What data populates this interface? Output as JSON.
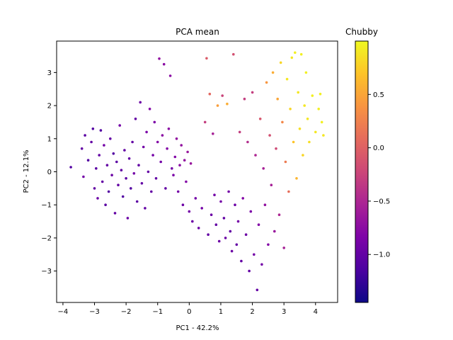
{
  "chart_data": {
    "type": "scatter",
    "title": "PCA mean",
    "xlabel": "PC1 - 42.2%",
    "ylabel": "PC2 - 12.1%",
    "xlim": [
      -4.2,
      4.7
    ],
    "ylim": [
      -3.95,
      3.95
    ],
    "xticks": [
      -4,
      -3,
      -2,
      -1,
      0,
      1,
      2,
      3,
      4
    ],
    "yticks": [
      -3,
      -2,
      -1,
      0,
      1,
      2,
      3
    ],
    "grid": false,
    "legend": "none",
    "colorbar": {
      "label": "Chubby",
      "colormap": "plasma",
      "range": [
        -1.45,
        1.0
      ],
      "ticks": [
        -1.0,
        -0.5,
        0.0,
        0.5
      ]
    },
    "series": [
      {
        "points": [
          {
            "x": -3.75,
            "y": 0.14,
            "c": -1.1
          },
          {
            "x": -3.4,
            "y": 0.7,
            "c": -1.0
          },
          {
            "x": -3.35,
            "y": -0.15,
            "c": -0.9
          },
          {
            "x": -3.3,
            "y": 1.1,
            "c": -1.05
          },
          {
            "x": -3.2,
            "y": 0.35,
            "c": -1.1
          },
          {
            "x": -3.1,
            "y": 0.9,
            "c": -1.0
          },
          {
            "x": -3.05,
            "y": 1.3,
            "c": -1.1
          },
          {
            "x": -3.0,
            "y": -0.5,
            "c": -1.0
          },
          {
            "x": -2.95,
            "y": 0.1,
            "c": -1.05
          },
          {
            "x": -2.9,
            "y": -0.8,
            "c": -0.95
          },
          {
            "x": -2.85,
            "y": 0.5,
            "c": -1.0
          },
          {
            "x": -2.8,
            "y": 1.25,
            "c": -1.1
          },
          {
            "x": -2.75,
            "y": -0.3,
            "c": -1.0
          },
          {
            "x": -2.7,
            "y": 0.8,
            "c": -0.9
          },
          {
            "x": -2.65,
            "y": -1.0,
            "c": -1.05
          },
          {
            "x": -2.6,
            "y": 0.2,
            "c": -1.0
          },
          {
            "x": -2.55,
            "y": -0.6,
            "c": -1.1
          },
          {
            "x": -2.5,
            "y": 1.0,
            "c": -1.0
          },
          {
            "x": -2.45,
            "y": -0.1,
            "c": -0.95
          },
          {
            "x": -2.4,
            "y": 0.55,
            "c": -1.1
          },
          {
            "x": -2.35,
            "y": -1.25,
            "c": -1.0
          },
          {
            "x": -2.3,
            "y": 0.3,
            "c": -1.05
          },
          {
            "x": -2.25,
            "y": -0.4,
            "c": -1.0
          },
          {
            "x": -2.2,
            "y": 1.4,
            "c": -0.9
          },
          {
            "x": -2.15,
            "y": 0.05,
            "c": -1.0
          },
          {
            "x": -2.1,
            "y": -0.75,
            "c": -1.1
          },
          {
            "x": -2.05,
            "y": 0.65,
            "c": -1.0
          },
          {
            "x": -2.0,
            "y": -0.2,
            "c": -1.05
          },
          {
            "x": -1.95,
            "y": -1.4,
            "c": -0.95
          },
          {
            "x": -1.9,
            "y": 0.4,
            "c": -1.0
          },
          {
            "x": -1.85,
            "y": -0.5,
            "c": -1.1
          },
          {
            "x": -1.8,
            "y": 0.9,
            "c": -1.0
          },
          {
            "x": -1.75,
            "y": -0.05,
            "c": -0.9
          },
          {
            "x": -1.7,
            "y": 1.6,
            "c": -1.0
          },
          {
            "x": -1.65,
            "y": -0.9,
            "c": -1.05
          },
          {
            "x": -1.6,
            "y": 0.2,
            "c": -1.0
          },
          {
            "x": -1.55,
            "y": 2.1,
            "c": -0.95
          },
          {
            "x": -1.5,
            "y": -0.35,
            "c": -1.0
          },
          {
            "x": -1.45,
            "y": 0.75,
            "c": -0.9
          },
          {
            "x": -1.4,
            "y": -1.1,
            "c": -1.0
          },
          {
            "x": -1.35,
            "y": 1.2,
            "c": -0.85
          },
          {
            "x": -1.3,
            "y": 0.0,
            "c": -1.0
          },
          {
            "x": -1.25,
            "y": 1.9,
            "c": -0.8
          },
          {
            "x": -1.2,
            "y": -0.6,
            "c": -1.0
          },
          {
            "x": -1.15,
            "y": 0.5,
            "c": -0.9
          },
          {
            "x": -1.1,
            "y": 1.5,
            "c": -0.85
          },
          {
            "x": -1.05,
            "y": -0.2,
            "c": -1.0
          },
          {
            "x": -1.0,
            "y": 0.9,
            "c": -0.8
          },
          {
            "x": -0.95,
            "y": 3.42,
            "c": -0.7
          },
          {
            "x": -0.9,
            "y": 0.3,
            "c": -0.9
          },
          {
            "x": -0.85,
            "y": 1.1,
            "c": -0.75
          },
          {
            "x": -0.8,
            "y": 3.25,
            "c": -0.75
          },
          {
            "x": -0.75,
            "y": -0.5,
            "c": -1.0
          },
          {
            "x": -0.7,
            "y": 0.7,
            "c": -0.8
          },
          {
            "x": -0.65,
            "y": 1.3,
            "c": -0.75
          },
          {
            "x": -0.6,
            "y": 2.9,
            "c": -0.75
          },
          {
            "x": -0.55,
            "y": 0.1,
            "c": -0.9
          },
          {
            "x": -0.5,
            "y": -0.1,
            "c": -0.85
          },
          {
            "x": -0.45,
            "y": 0.45,
            "c": -0.8
          },
          {
            "x": -0.4,
            "y": 1.0,
            "c": -0.7
          },
          {
            "x": -0.35,
            "y": -0.6,
            "c": -0.9
          },
          {
            "x": -0.3,
            "y": 0.2,
            "c": -0.75
          },
          {
            "x": -0.25,
            "y": 0.8,
            "c": -0.7
          },
          {
            "x": -0.2,
            "y": -1.0,
            "c": -0.95
          },
          {
            "x": -0.15,
            "y": 0.35,
            "c": -0.7
          },
          {
            "x": -0.1,
            "y": -0.3,
            "c": -0.8
          },
          {
            "x": -0.05,
            "y": 0.6,
            "c": -0.65
          },
          {
            "x": 0.0,
            "y": -1.2,
            "c": -0.9
          },
          {
            "x": 0.05,
            "y": 0.25,
            "c": -0.65
          },
          {
            "x": 0.1,
            "y": -1.5,
            "c": -0.95
          },
          {
            "x": 0.2,
            "y": -0.8,
            "c": -0.9
          },
          {
            "x": 0.3,
            "y": -1.7,
            "c": -0.95
          },
          {
            "x": 0.4,
            "y": -1.1,
            "c": -0.9
          },
          {
            "x": 0.5,
            "y": 1.5,
            "c": -0.3
          },
          {
            "x": 0.55,
            "y": 3.43,
            "c": -0.05
          },
          {
            "x": 0.6,
            "y": -1.9,
            "c": -1.0
          },
          {
            "x": 0.65,
            "y": 2.35,
            "c": 0.05
          },
          {
            "x": 0.7,
            "y": -1.3,
            "c": -0.95
          },
          {
            "x": 0.75,
            "y": 1.15,
            "c": -0.55
          },
          {
            "x": 0.8,
            "y": -0.7,
            "c": -0.9
          },
          {
            "x": 0.85,
            "y": -1.6,
            "c": -1.0
          },
          {
            "x": 0.9,
            "y": 2.0,
            "c": 0.45
          },
          {
            "x": 0.95,
            "y": -2.1,
            "c": -0.95
          },
          {
            "x": 1.0,
            "y": -0.9,
            "c": -0.9
          },
          {
            "x": 1.05,
            "y": 2.3,
            "c": -0.25
          },
          {
            "x": 1.1,
            "y": -1.4,
            "c": -1.0
          },
          {
            "x": 1.15,
            "y": -2.0,
            "c": -0.95
          },
          {
            "x": 1.2,
            "y": 2.05,
            "c": 0.55
          },
          {
            "x": 1.25,
            "y": -0.6,
            "c": -0.9
          },
          {
            "x": 1.3,
            "y": -1.8,
            "c": -1.0
          },
          {
            "x": 1.35,
            "y": -2.4,
            "c": -0.95
          },
          {
            "x": 1.4,
            "y": 3.55,
            "c": -0.15
          },
          {
            "x": 1.45,
            "y": -1.0,
            "c": -0.95
          },
          {
            "x": 1.5,
            "y": -2.2,
            "c": -1.0
          },
          {
            "x": 1.55,
            "y": -1.5,
            "c": -0.9
          },
          {
            "x": 1.6,
            "y": 1.2,
            "c": -0.3
          },
          {
            "x": 1.65,
            "y": -2.7,
            "c": -1.0
          },
          {
            "x": 1.7,
            "y": -0.8,
            "c": -0.8
          },
          {
            "x": 1.75,
            "y": 2.2,
            "c": -0.3
          },
          {
            "x": 1.8,
            "y": -1.9,
            "c": -0.95
          },
          {
            "x": 1.85,
            "y": 0.9,
            "c": -0.45
          },
          {
            "x": 1.9,
            "y": -3.0,
            "c": -1.0
          },
          {
            "x": 1.95,
            "y": -1.2,
            "c": -0.85
          },
          {
            "x": 2.0,
            "y": 2.4,
            "c": -0.3
          },
          {
            "x": 2.05,
            "y": -2.5,
            "c": -0.9
          },
          {
            "x": 2.1,
            "y": 0.5,
            "c": -0.5
          },
          {
            "x": 2.15,
            "y": -3.57,
            "c": -1.0
          },
          {
            "x": 2.2,
            "y": -1.6,
            "c": -0.8
          },
          {
            "x": 2.25,
            "y": 1.6,
            "c": -0.1
          },
          {
            "x": 2.3,
            "y": -2.8,
            "c": -0.9
          },
          {
            "x": 2.35,
            "y": 0.1,
            "c": -0.55
          },
          {
            "x": 2.4,
            "y": -1.0,
            "c": -0.7
          },
          {
            "x": 2.45,
            "y": 2.7,
            "c": 0.4
          },
          {
            "x": 2.5,
            "y": -2.2,
            "c": -0.8
          },
          {
            "x": 2.55,
            "y": 1.1,
            "c": -0.15
          },
          {
            "x": 2.6,
            "y": -0.4,
            "c": -0.55
          },
          {
            "x": 2.65,
            "y": 3.0,
            "c": 0.55
          },
          {
            "x": 2.7,
            "y": -1.8,
            "c": -0.65
          },
          {
            "x": 2.75,
            "y": 0.7,
            "c": -0.2
          },
          {
            "x": 2.8,
            "y": 2.2,
            "c": 0.5
          },
          {
            "x": 2.85,
            "y": -1.3,
            "c": -0.5
          },
          {
            "x": 2.9,
            "y": 3.3,
            "c": 0.8
          },
          {
            "x": 2.95,
            "y": 1.5,
            "c": 0.3
          },
          {
            "x": 3.0,
            "y": -2.3,
            "c": -0.55
          },
          {
            "x": 3.05,
            "y": 0.3,
            "c": 0.2
          },
          {
            "x": 3.1,
            "y": 2.8,
            "c": 0.9
          },
          {
            "x": 3.15,
            "y": -0.6,
            "c": 0.1
          },
          {
            "x": 3.2,
            "y": 1.9,
            "c": 0.8
          },
          {
            "x": 3.25,
            "y": 3.45,
            "c": 0.9
          },
          {
            "x": 3.3,
            "y": 0.9,
            "c": 0.7
          },
          {
            "x": 3.35,
            "y": 3.6,
            "c": 0.95
          },
          {
            "x": 3.4,
            "y": -0.2,
            "c": 0.6
          },
          {
            "x": 3.45,
            "y": 2.4,
            "c": 0.9
          },
          {
            "x": 3.5,
            "y": 1.3,
            "c": 0.85
          },
          {
            "x": 3.55,
            "y": 3.55,
            "c": 0.95
          },
          {
            "x": 3.6,
            "y": 0.5,
            "c": 0.8
          },
          {
            "x": 3.65,
            "y": 2.0,
            "c": 0.9
          },
          {
            "x": 3.7,
            "y": 3.0,
            "c": 0.95
          },
          {
            "x": 3.75,
            "y": 1.6,
            "c": 0.9
          },
          {
            "x": 3.8,
            "y": 0.9,
            "c": 0.85
          },
          {
            "x": 3.9,
            "y": 2.3,
            "c": 0.95
          },
          {
            "x": 4.0,
            "y": 1.2,
            "c": 0.9
          },
          {
            "x": 4.1,
            "y": 1.9,
            "c": 0.95
          },
          {
            "x": 4.15,
            "y": 2.35,
            "c": 0.95
          },
          {
            "x": 4.2,
            "y": 1.5,
            "c": 0.95
          },
          {
            "x": 4.25,
            "y": 1.1,
            "c": 0.9
          }
        ]
      }
    ]
  }
}
